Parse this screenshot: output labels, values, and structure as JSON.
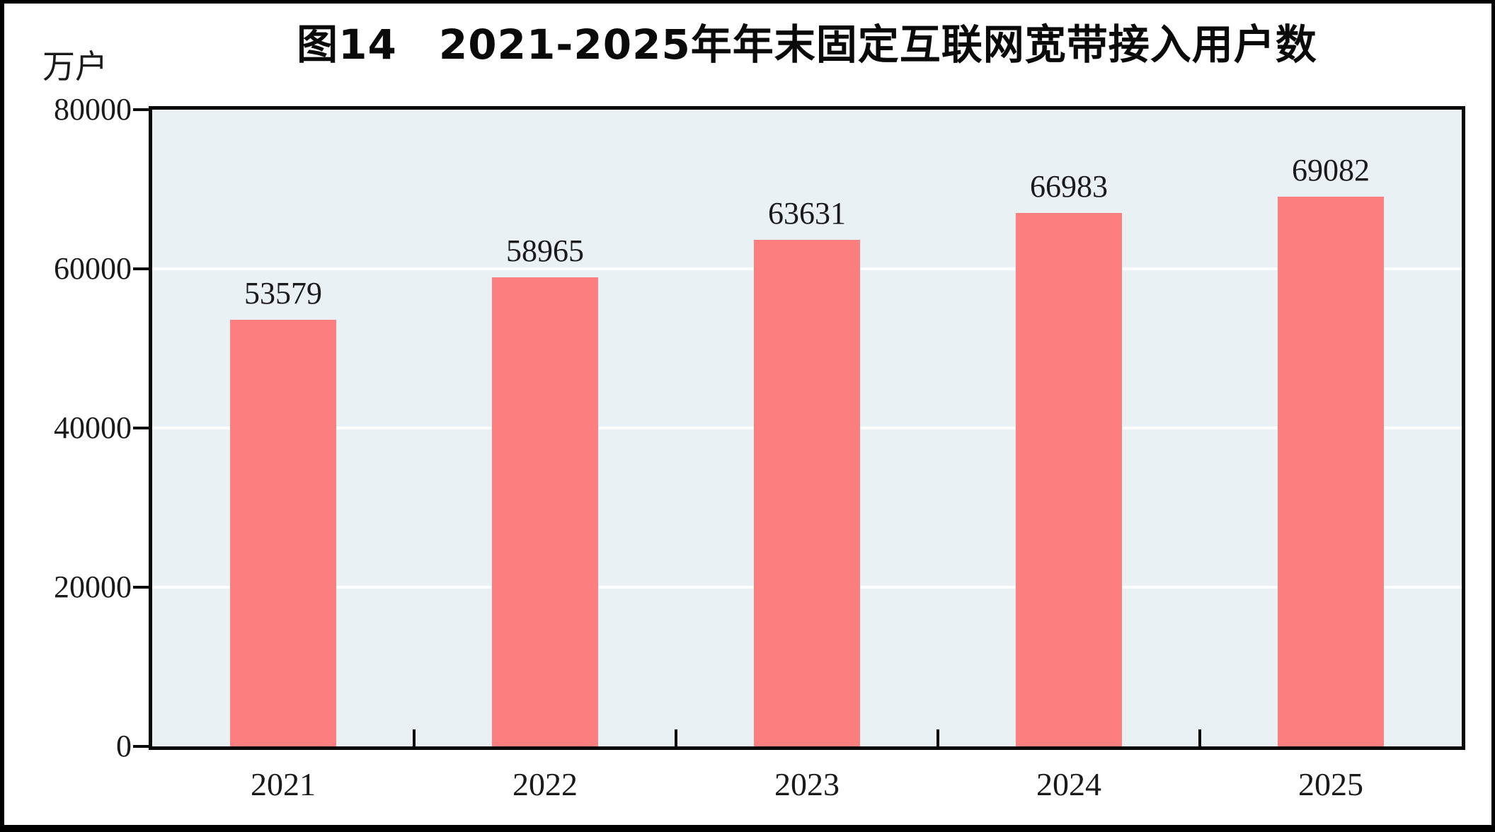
{
  "figure": {
    "title": "图14　2021-2025年年末固定互联网宽带接入用户数",
    "unit_label": "万户"
  },
  "chart_data": {
    "type": "bar",
    "categories": [
      "2021",
      "2022",
      "2023",
      "2024",
      "2025"
    ],
    "values": [
      53579,
      58965,
      63631,
      66983,
      69082
    ],
    "title": "图14　2021-2025年年末固定互联网宽带接入用户数",
    "xlabel": "",
    "ylabel": "万户",
    "ylim": [
      0,
      80000
    ],
    "yticks": [
      0,
      20000,
      40000,
      60000,
      80000
    ],
    "gridlines": [
      20000,
      40000,
      60000
    ],
    "legend_position": "none",
    "data_labels_shown": true,
    "bar_color": "#fc7e7e",
    "plot_bg_color": "#e9f1f5",
    "gridline_color": "#ffffff",
    "axis_color": "#0a0a0a",
    "text_color": "#1a1a1a"
  }
}
